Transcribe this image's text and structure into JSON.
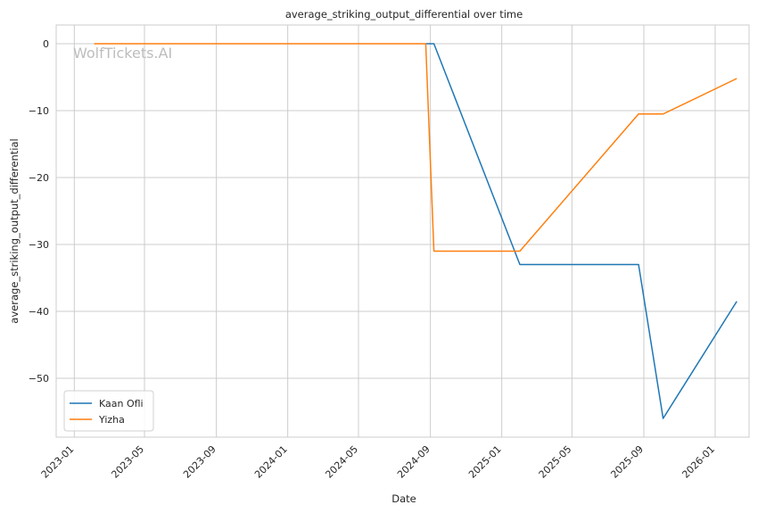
{
  "chart_data": {
    "type": "line",
    "title": "average_striking_output_differential over time",
    "xlabel": "Date",
    "ylabel": "average_striking_output_differential",
    "watermark": "WolfTickets.AI",
    "xlim": [
      "2022-12-01",
      "2026-02-28"
    ],
    "ylim": [
      -58.8,
      2.8
    ],
    "x_ticks": [
      "2023-01",
      "2023-05",
      "2023-09",
      "2024-01",
      "2024-05",
      "2024-09",
      "2025-01",
      "2025-05",
      "2025-09",
      "2026-01"
    ],
    "y_ticks": [
      0,
      -10,
      -20,
      -30,
      -40,
      -50
    ],
    "grid": true,
    "legend_position": "lower-left",
    "series": [
      {
        "name": "Kaan Ofli",
        "color": "#1f77b4",
        "points": [
          [
            "2024-08-24",
            0
          ],
          [
            "2024-09-07",
            0
          ],
          [
            "2025-02-01",
            -33
          ],
          [
            "2025-08-23",
            -33
          ],
          [
            "2025-10-04",
            -56
          ],
          [
            "2026-02-07",
            -38.5
          ]
        ]
      },
      {
        "name": "Yizha",
        "color": "#ff7f0e",
        "points": [
          [
            "2023-02-04",
            0
          ],
          [
            "2024-08-24",
            0
          ],
          [
            "2024-09-07",
            -31
          ],
          [
            "2025-02-01",
            -31
          ],
          [
            "2025-08-23",
            -10.5
          ],
          [
            "2025-10-04",
            -10.5
          ],
          [
            "2026-02-07",
            -5.2
          ]
        ]
      }
    ]
  }
}
